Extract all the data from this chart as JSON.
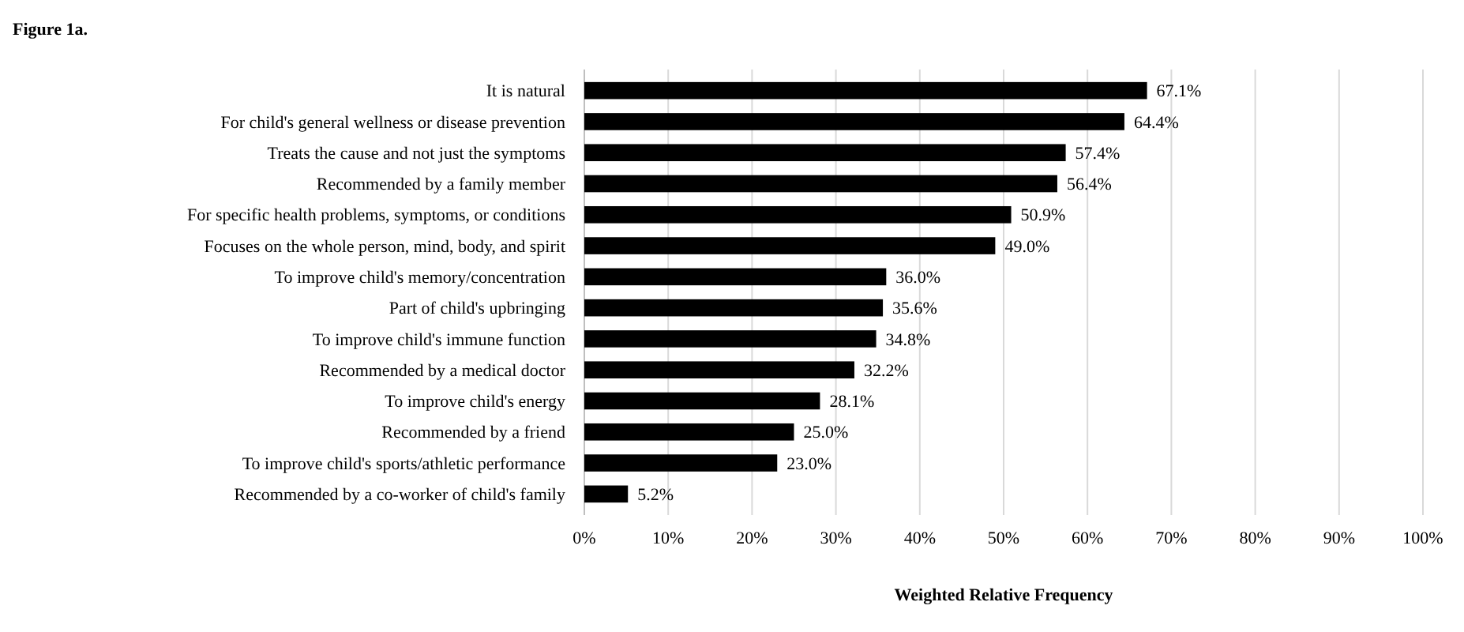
{
  "chart_data": {
    "type": "bar",
    "orientation": "horizontal",
    "title": "Figure 1a.",
    "xlabel": "Weighted Relative Frequency",
    "categories": [
      "It is natural",
      "For child's general wellness or disease prevention",
      "Treats the cause and not just the symptoms",
      "Recommended by a family member",
      "For specific health problems, symptoms, or conditions",
      "Focuses on the whole person, mind, body, and spirit",
      "To improve child's memory/concentration",
      "Part of child's upbringing",
      "To improve child's immune function",
      "Recommended by a medical doctor",
      "To improve child's energy",
      "Recommended by a friend",
      "To improve child's sports/athletic performance",
      "Recommended by a co-worker of child's family"
    ],
    "values": [
      67.1,
      64.4,
      57.4,
      56.4,
      50.9,
      49.0,
      36.0,
      35.6,
      34.8,
      32.2,
      28.1,
      25.0,
      23.0,
      5.2
    ],
    "value_labels": [
      "67.1%",
      "64.4%",
      "57.4%",
      "56.4%",
      "50.9%",
      "49.0%",
      "36.0%",
      "35.6%",
      "34.8%",
      "32.2%",
      "28.1%",
      "25.0%",
      "23.0%",
      "5.2%"
    ],
    "color": "#000000",
    "xlim": [
      0,
      100
    ],
    "xticks": [
      {
        "value": 0,
        "label": "0%"
      },
      {
        "value": 10,
        "label": "10%"
      },
      {
        "value": 20,
        "label": "20%"
      },
      {
        "value": 30,
        "label": "30%"
      },
      {
        "value": 40,
        "label": "40%"
      },
      {
        "value": 50,
        "label": "50%"
      },
      {
        "value": 60,
        "label": "60%"
      },
      {
        "value": 70,
        "label": "70%"
      },
      {
        "value": 80,
        "label": "80%"
      },
      {
        "value": 90,
        "label": "90%"
      },
      {
        "value": 100,
        "label": "100%"
      }
    ],
    "grid": "x"
  }
}
